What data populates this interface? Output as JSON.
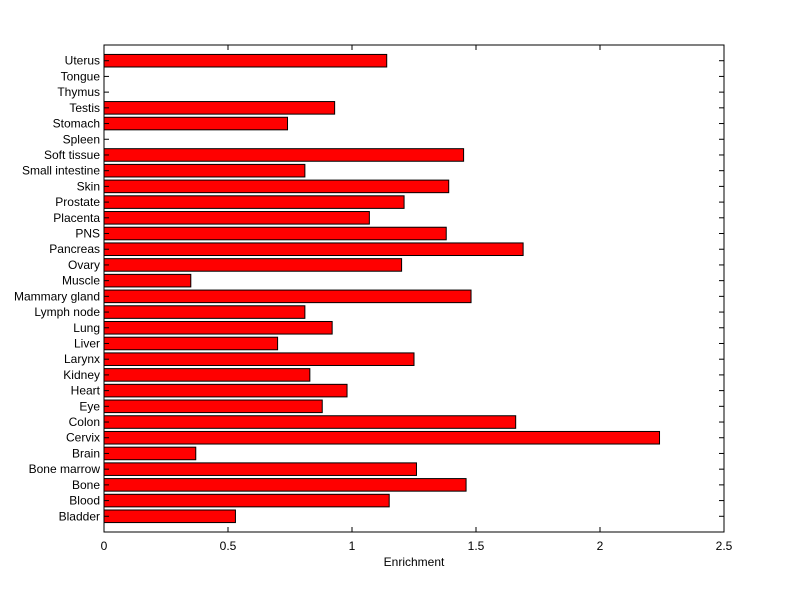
{
  "chart_data": {
    "type": "bar",
    "orientation": "horizontal",
    "title": "",
    "xlabel": "Enrichment",
    "ylabel": "",
    "xlim": [
      0,
      2.5
    ],
    "xticks": [
      "0",
      "0.5",
      "1",
      "1.5",
      "2",
      "2.5"
    ],
    "grid": false,
    "legend": "none",
    "bar_color": "#ff0000",
    "bar_edge_color": "#000000",
    "categories": [
      "Bladder",
      "Blood",
      "Bone",
      "Bone marrow",
      "Brain",
      "Cervix",
      "Colon",
      "Eye",
      "Heart",
      "Kidney",
      "Larynx",
      "Liver",
      "Lung",
      "Lymph node",
      "Mammary gland",
      "Muscle",
      "Ovary",
      "Pancreas",
      "PNS",
      "Placenta",
      "Prostate",
      "Skin",
      "Small intestine",
      "Soft tissue",
      "Spleen",
      "Stomach",
      "Testis",
      "Thymus",
      "Tongue",
      "Uterus"
    ],
    "values": [
      0.53,
      1.15,
      1.46,
      1.26,
      0.37,
      2.24,
      1.66,
      0.88,
      0.98,
      0.83,
      1.25,
      0.7,
      0.92,
      0.81,
      1.48,
      0.35,
      1.2,
      1.69,
      1.38,
      1.07,
      1.21,
      1.39,
      0.81,
      1.45,
      0,
      0.74,
      0.93,
      0,
      0,
      1.14
    ]
  }
}
